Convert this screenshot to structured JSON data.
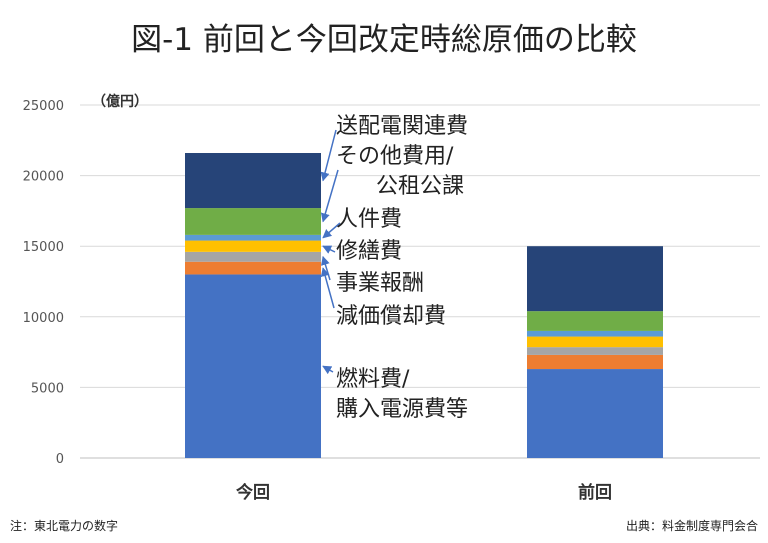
{
  "chart_data": {
    "type": "bar",
    "stacked": true,
    "title": "図-1 前回と今回改定時総原価の比較",
    "ylabel": "（億円）",
    "xlabel": "",
    "ylim": [
      0,
      25000
    ],
    "yticks": [
      0,
      5000,
      10000,
      15000,
      20000,
      25000
    ],
    "grid": true,
    "categories": [
      "今回",
      "前回"
    ],
    "series": [
      {
        "name": "燃料費/購入電源費等",
        "color": "#4472C4",
        "values": [
          13000,
          6300
        ]
      },
      {
        "name": "減価償却費",
        "color": "#ED7D31",
        "values": [
          900,
          1000
        ]
      },
      {
        "name": "事業報酬",
        "color": "#A5A5A5",
        "values": [
          700,
          550
        ]
      },
      {
        "name": "修繕費",
        "color": "#FFC000",
        "values": [
          800,
          750
        ]
      },
      {
        "name": "人件費",
        "color": "#5B9BD5",
        "values": [
          400,
          400
        ]
      },
      {
        "name": "その他費用/公租公課",
        "color": "#70AD47",
        "values": [
          1900,
          1400
        ]
      },
      {
        "name": "送配電関連費",
        "color": "#264478",
        "values": [
          3900,
          4600
        ]
      }
    ],
    "annotations": [
      {
        "lines": [
          "送配電関連費"
        ]
      },
      {
        "lines": [
          "その他費用/",
          "公租公課"
        ]
      },
      {
        "lines": [
          "人件費"
        ]
      },
      {
        "lines": [
          "修繕費"
        ]
      },
      {
        "lines": [
          "事業報酬"
        ]
      },
      {
        "lines": [
          "減価償却費"
        ]
      },
      {
        "lines": [
          "燃料費/",
          "購入電源費等"
        ]
      }
    ]
  },
  "footer": {
    "note": "注：東北電力の数字",
    "source": "出典：料金制度専門会合"
  }
}
